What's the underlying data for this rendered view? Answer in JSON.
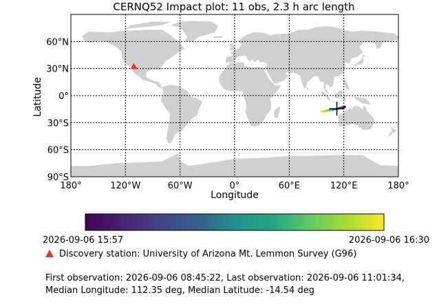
{
  "chart_data": {
    "type": "scatter",
    "title": "CERNQ52 Impact plot: 11 obs, 2.3 h arc length",
    "xlabel": "Longitude",
    "ylabel": "Latitude",
    "xlim": [
      -180,
      180
    ],
    "ylim": [
      -90,
      90
    ],
    "grid": true,
    "x_ticks": [
      -180,
      -120,
      -60,
      0,
      60,
      120,
      180
    ],
    "x_tick_labels": [
      "180°",
      "120°W",
      "60°W",
      "0°",
      "60°E",
      "120°E",
      "180°"
    ],
    "y_ticks": [
      60,
      30,
      0,
      -30,
      -60,
      -90
    ],
    "y_tick_labels": [
      "60°N",
      "30°N",
      "0°",
      "30°S",
      "60°S",
      "90°S"
    ],
    "impact_track": [
      {
        "lon": 96,
        "lat": -17.5,
        "t": 1.0
      },
      {
        "lon": 99,
        "lat": -17.0,
        "t": 0.9
      },
      {
        "lon": 102,
        "lat": -16.5,
        "t": 0.8
      },
      {
        "lon": 105,
        "lat": -16.0,
        "t": 0.7
      },
      {
        "lon": 108,
        "lat": -15.5,
        "t": 0.6
      },
      {
        "lon": 111,
        "lat": -15.0,
        "t": 0.5
      },
      {
        "lon": 113,
        "lat": -14.5,
        "t": 0.4
      },
      {
        "lon": 115,
        "lat": -14.0,
        "t": 0.3
      },
      {
        "lon": 117,
        "lat": -13.5,
        "t": 0.2
      },
      {
        "lon": 119,
        "lat": -13.0,
        "t": 0.1
      },
      {
        "lon": 121,
        "lat": -12.5,
        "t": 0.0
      }
    ],
    "median_marker": {
      "lon": 112.35,
      "lat": -14.54
    },
    "discovery_station": {
      "lon": -110.8,
      "lat": 32.4,
      "color": "#ff2a1a"
    },
    "colormap": "viridis",
    "colorbar_min_label": "2026-09-06 15:57",
    "colorbar_max_label": "2026-09-06 16:30"
  },
  "legend": {
    "discovery_label": "Discovery station: University of Arizona Mt. Lemmon Survey (G96)"
  },
  "summary": {
    "line1": "First observation: 2026-09-06 08:45:22, Last observation: 2026-09-06 11:01:34,",
    "line2": "Median Longitude: 112.35 deg, Median Latitude: -14.54 deg"
  },
  "colors": {
    "land": "#d0d0d0",
    "ocean": "#ffffff",
    "grid": "#000000"
  }
}
